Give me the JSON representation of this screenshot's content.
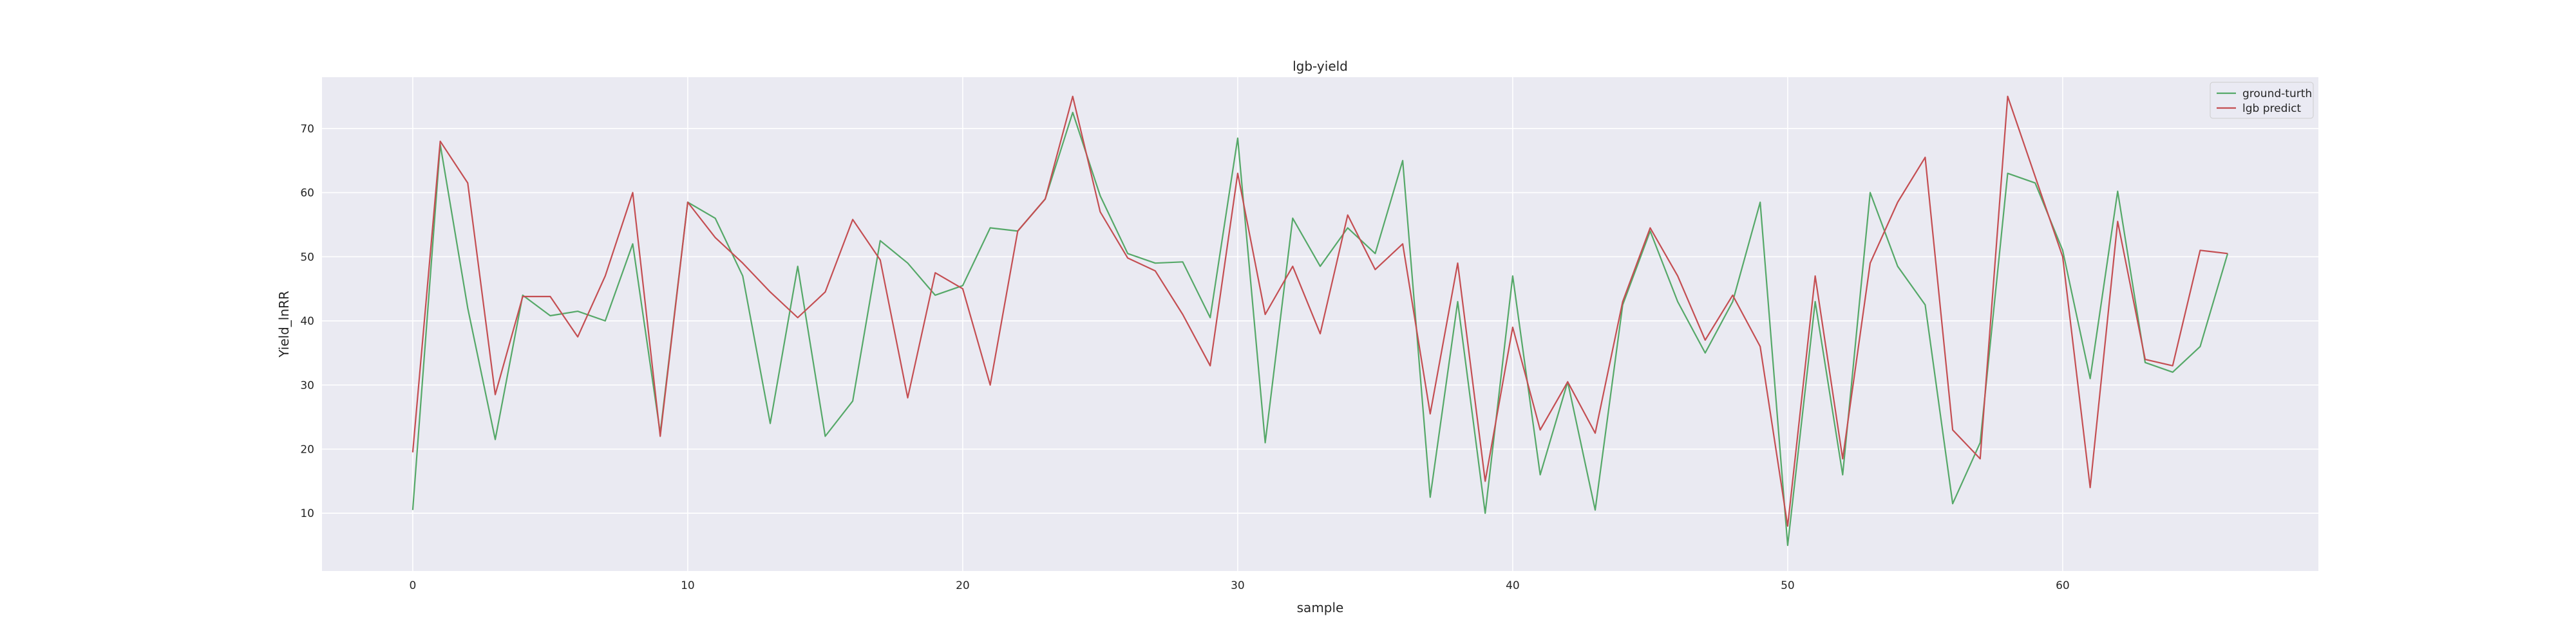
{
  "chart_data": {
    "type": "line",
    "title": "lgb-yield",
    "xlabel": "sample",
    "ylabel": "Yield_lnRR",
    "xlim": [
      -3.3,
      69.3
    ],
    "ylim": [
      1,
      78
    ],
    "xticks": [
      0,
      10,
      20,
      30,
      40,
      50,
      60
    ],
    "yticks": [
      10,
      20,
      30,
      40,
      50,
      60,
      70
    ],
    "grid": true,
    "legend_position": "top-right",
    "x": [
      0,
      1,
      2,
      3,
      4,
      5,
      6,
      7,
      8,
      9,
      10,
      11,
      12,
      13,
      14,
      15,
      16,
      17,
      18,
      19,
      20,
      21,
      22,
      23,
      24,
      25,
      26,
      27,
      28,
      29,
      30,
      31,
      32,
      33,
      34,
      35,
      36,
      37,
      38,
      39,
      40,
      41,
      42,
      43,
      44,
      45,
      46,
      47,
      48,
      49,
      50,
      51,
      52,
      53,
      54,
      55,
      56,
      57,
      58,
      59,
      60,
      61,
      62,
      63,
      64,
      65,
      66
    ],
    "series": [
      {
        "name": "ground-turth",
        "color": "#55a868",
        "values": [
          10.5,
          67.5,
          42.0,
          21.5,
          44.0,
          40.8,
          41.5,
          40.0,
          52.0,
          22.5,
          58.5,
          56.0,
          47.0,
          24.0,
          48.5,
          22.0,
          27.5,
          52.5,
          49.0,
          44.0,
          45.5,
          54.5,
          54.0,
          59.0,
          72.5,
          59.5,
          50.5,
          49.0,
          49.2,
          40.5,
          68.5,
          21.0,
          56.0,
          48.5,
          54.5,
          50.5,
          65.0,
          12.5,
          43.0,
          10.0,
          47.0,
          16.0,
          30.5,
          10.5,
          42.5,
          54.0,
          43.0,
          35.0,
          43.0,
          58.5,
          5.0,
          43.0,
          16.0,
          60.0,
          48.5,
          42.5,
          11.5,
          21.0,
          63.0,
          61.5,
          51.0,
          31.0,
          60.2,
          33.5,
          32.0,
          36.0,
          50.5
        ]
      },
      {
        "name": "lgb predict",
        "color": "#c44e52",
        "values": [
          19.5,
          68.0,
          61.5,
          28.5,
          43.8,
          43.8,
          37.5,
          47.0,
          60.0,
          22.0,
          58.5,
          53.0,
          49.0,
          44.5,
          40.5,
          44.5,
          55.8,
          49.5,
          28.0,
          47.5,
          45.0,
          30.0,
          54.0,
          59.0,
          75.0,
          57.0,
          49.8,
          47.8,
          41.0,
          33.0,
          63.0,
          41.0,
          48.5,
          38.0,
          56.5,
          48.0,
          52.0,
          25.5,
          49.0,
          15.0,
          39.0,
          23.0,
          30.5,
          22.5,
          43.0,
          54.5,
          47.0,
          37.0,
          44.0,
          36.0,
          8.0,
          47.0,
          18.5,
          49.0,
          58.5,
          65.5,
          23.0,
          18.5,
          75.0,
          62.5,
          50.0,
          14.0,
          55.5,
          34.0,
          33.0,
          51.0,
          50.5
        ]
      }
    ]
  }
}
